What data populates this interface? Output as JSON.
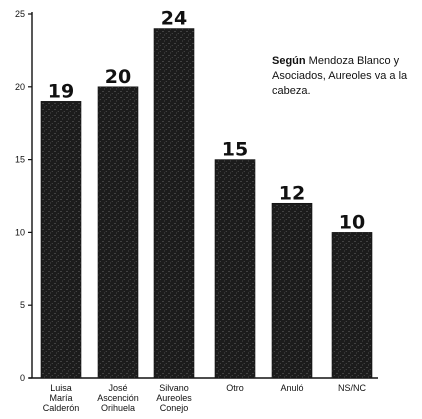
{
  "chart_data": {
    "type": "bar",
    "categories": [
      [
        "Luisa",
        "María",
        "Calderón"
      ],
      [
        "José",
        "Ascención",
        "Orihuela"
      ],
      [
        "Silvano",
        "Aureoles",
        "Conejo"
      ],
      [
        "Otro"
      ],
      [
        "Anuló"
      ],
      [
        "NS/NC"
      ]
    ],
    "values": [
      19,
      20,
      24,
      15,
      12,
      10
    ],
    "value_labels": [
      "19",
      "20",
      "24",
      "15",
      "12",
      "10"
    ],
    "ylim": [
      0,
      25
    ],
    "yticks": [
      0,
      5,
      10,
      15,
      20,
      25
    ],
    "ytick_labels": [
      "0",
      "5",
      "10",
      "15",
      "20",
      "25"
    ],
    "annotation": {
      "bold": "Según",
      "text": " Mendoza Blanco y Asociados, Aureoles va a la cabeza."
    },
    "colors": {
      "bar": "#1a1a1a",
      "axis": "#111111"
    }
  }
}
